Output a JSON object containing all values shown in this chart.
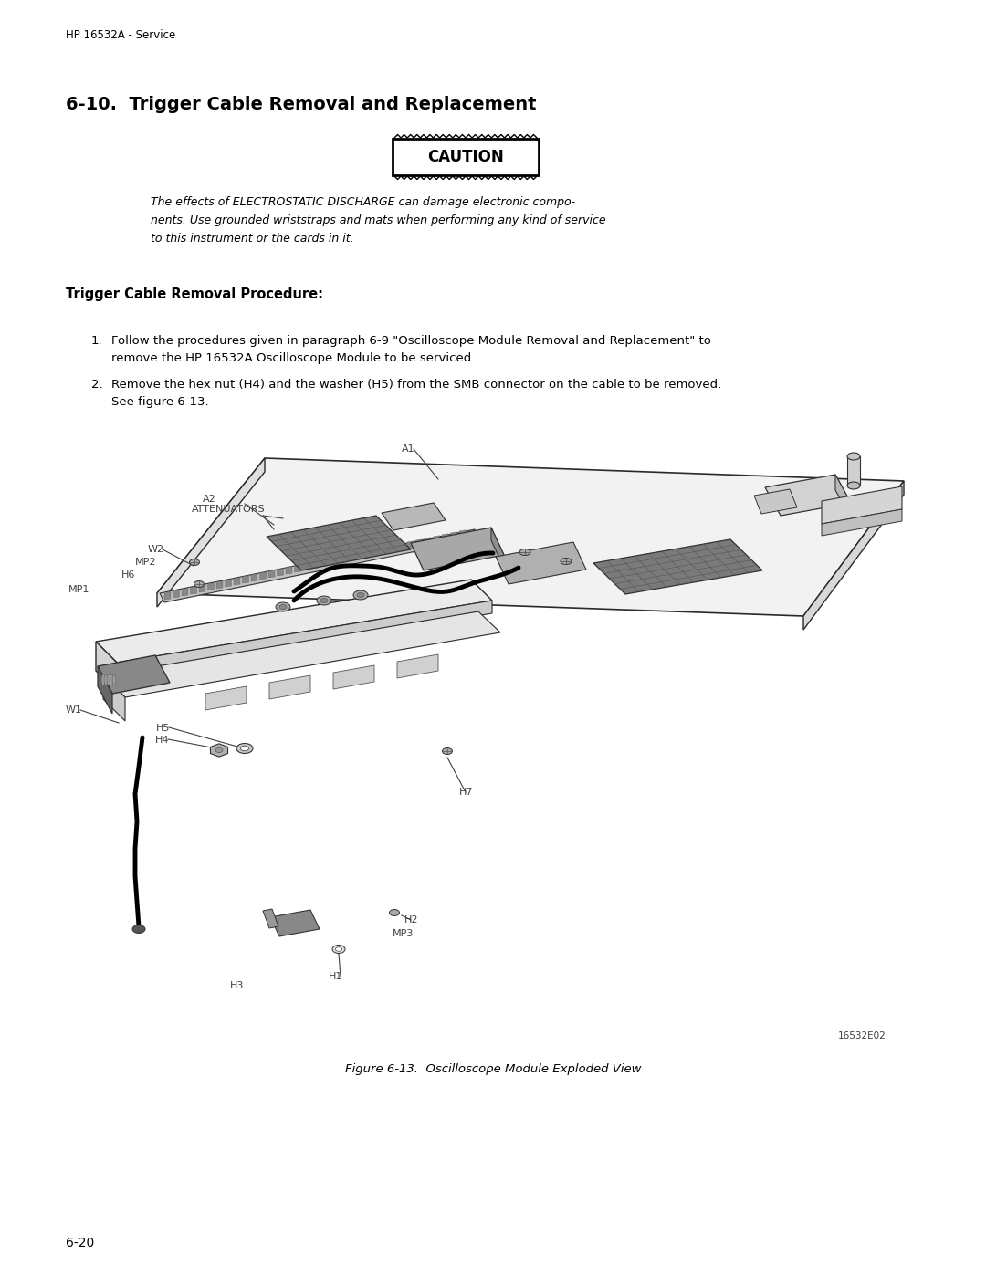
{
  "page_header": "HP 16532A - Service",
  "section_title": "6-10.  Trigger Cable Removal and Replacement",
  "caution_text": "CAUTION",
  "caution_body_lines": [
    "The effects of ELECTROSTATIC DISCHARGE can damage electronic compo-",
    "nents. Use grounded wriststraps and mats when performing any kind of service",
    "to this instrument or the cards in it."
  ],
  "procedure_title": "Trigger Cable Removal Procedure:",
  "step1_lines": [
    "Follow the procedures given in paragraph 6-9 \"Oscilloscope Module Removal and Replacement\" to",
    "remove the HP 16532A Oscilloscope Module to be serviced."
  ],
  "step2_lines": [
    "Remove the hex nut (H4) and the washer (H5) from the SMB connector on the cable to be removed.",
    "See figure 6-13."
  ],
  "figure_caption": "Figure 6-13.  Oscilloscope Module Exploded View",
  "figure_id": "16532E02",
  "page_number": "6-20",
  "bg_color": "#ffffff",
  "text_color": "#000000",
  "ann_color": "#404040"
}
